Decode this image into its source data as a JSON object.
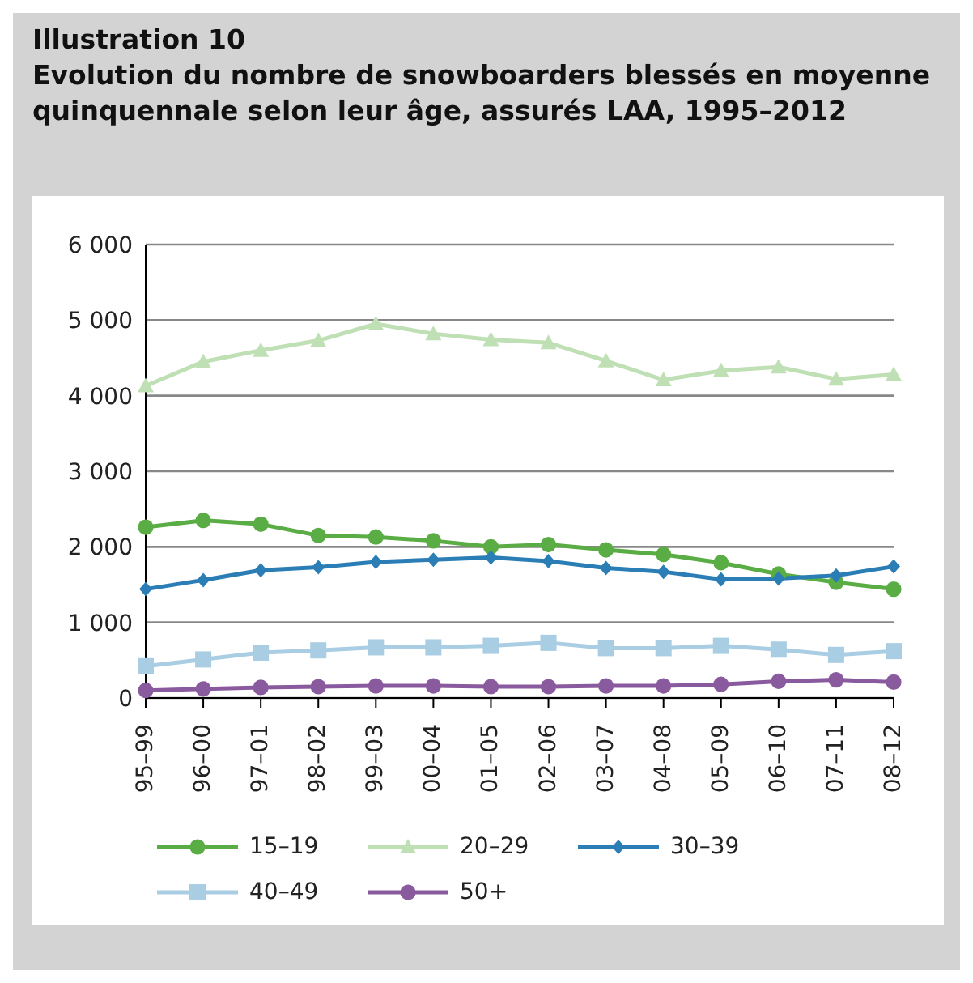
{
  "chart_data": {
    "type": "line",
    "title": "Illustration 10",
    "subtitle": "Evolution du nombre de snowboarders blessés en moyenne quinquennale selon leur âge, assurés LAA, 1995–2012",
    "categories": [
      "95–99",
      "96–00",
      "97–01",
      "98–02",
      "99–03",
      "00–04",
      "01–05",
      "02–06",
      "03–07",
      "04–08",
      "05–09",
      "06–10",
      "07–11",
      "08–12"
    ],
    "series": [
      {
        "name": "15–19",
        "color": "#5aac44",
        "marker": "circle",
        "values": [
          2260,
          2350,
          2300,
          2150,
          2130,
          2080,
          2000,
          2030,
          1960,
          1900,
          1790,
          1640,
          1530,
          1440
        ]
      },
      {
        "name": "20–29",
        "color": "#bfe0b4",
        "marker": "triangle",
        "values": [
          4130,
          4450,
          4600,
          4730,
          4950,
          4820,
          4740,
          4700,
          4460,
          4210,
          4330,
          4380,
          4220,
          4280
        ]
      },
      {
        "name": "30–39",
        "color": "#2a7db5",
        "marker": "diamond",
        "values": [
          1440,
          1560,
          1690,
          1730,
          1800,
          1830,
          1860,
          1810,
          1720,
          1670,
          1570,
          1580,
          1620,
          1740
        ]
      },
      {
        "name": "40–49",
        "color": "#a9cde3",
        "marker": "square",
        "values": [
          420,
          510,
          600,
          630,
          670,
          670,
          690,
          730,
          660,
          660,
          690,
          640,
          570,
          620
        ]
      },
      {
        "name": "50+",
        "color": "#8a5a9e",
        "marker": "circle",
        "values": [
          100,
          120,
          140,
          150,
          160,
          160,
          150,
          150,
          160,
          160,
          180,
          220,
          240,
          210
        ]
      }
    ],
    "ylim": [
      0,
      6000
    ],
    "yticks": [
      0,
      {
        "value": 1000,
        "label": "1 000"
      },
      {
        "value": 2000,
        "label": "2 000"
      },
      {
        "value": 3000,
        "label": "3 000"
      },
      {
        "value": 4000,
        "label": "4 000"
      },
      {
        "value": 5000,
        "label": "5 000"
      },
      {
        "value": 6000,
        "label": "6 000"
      }
    ],
    "grid": "y",
    "legend": "bottom"
  }
}
